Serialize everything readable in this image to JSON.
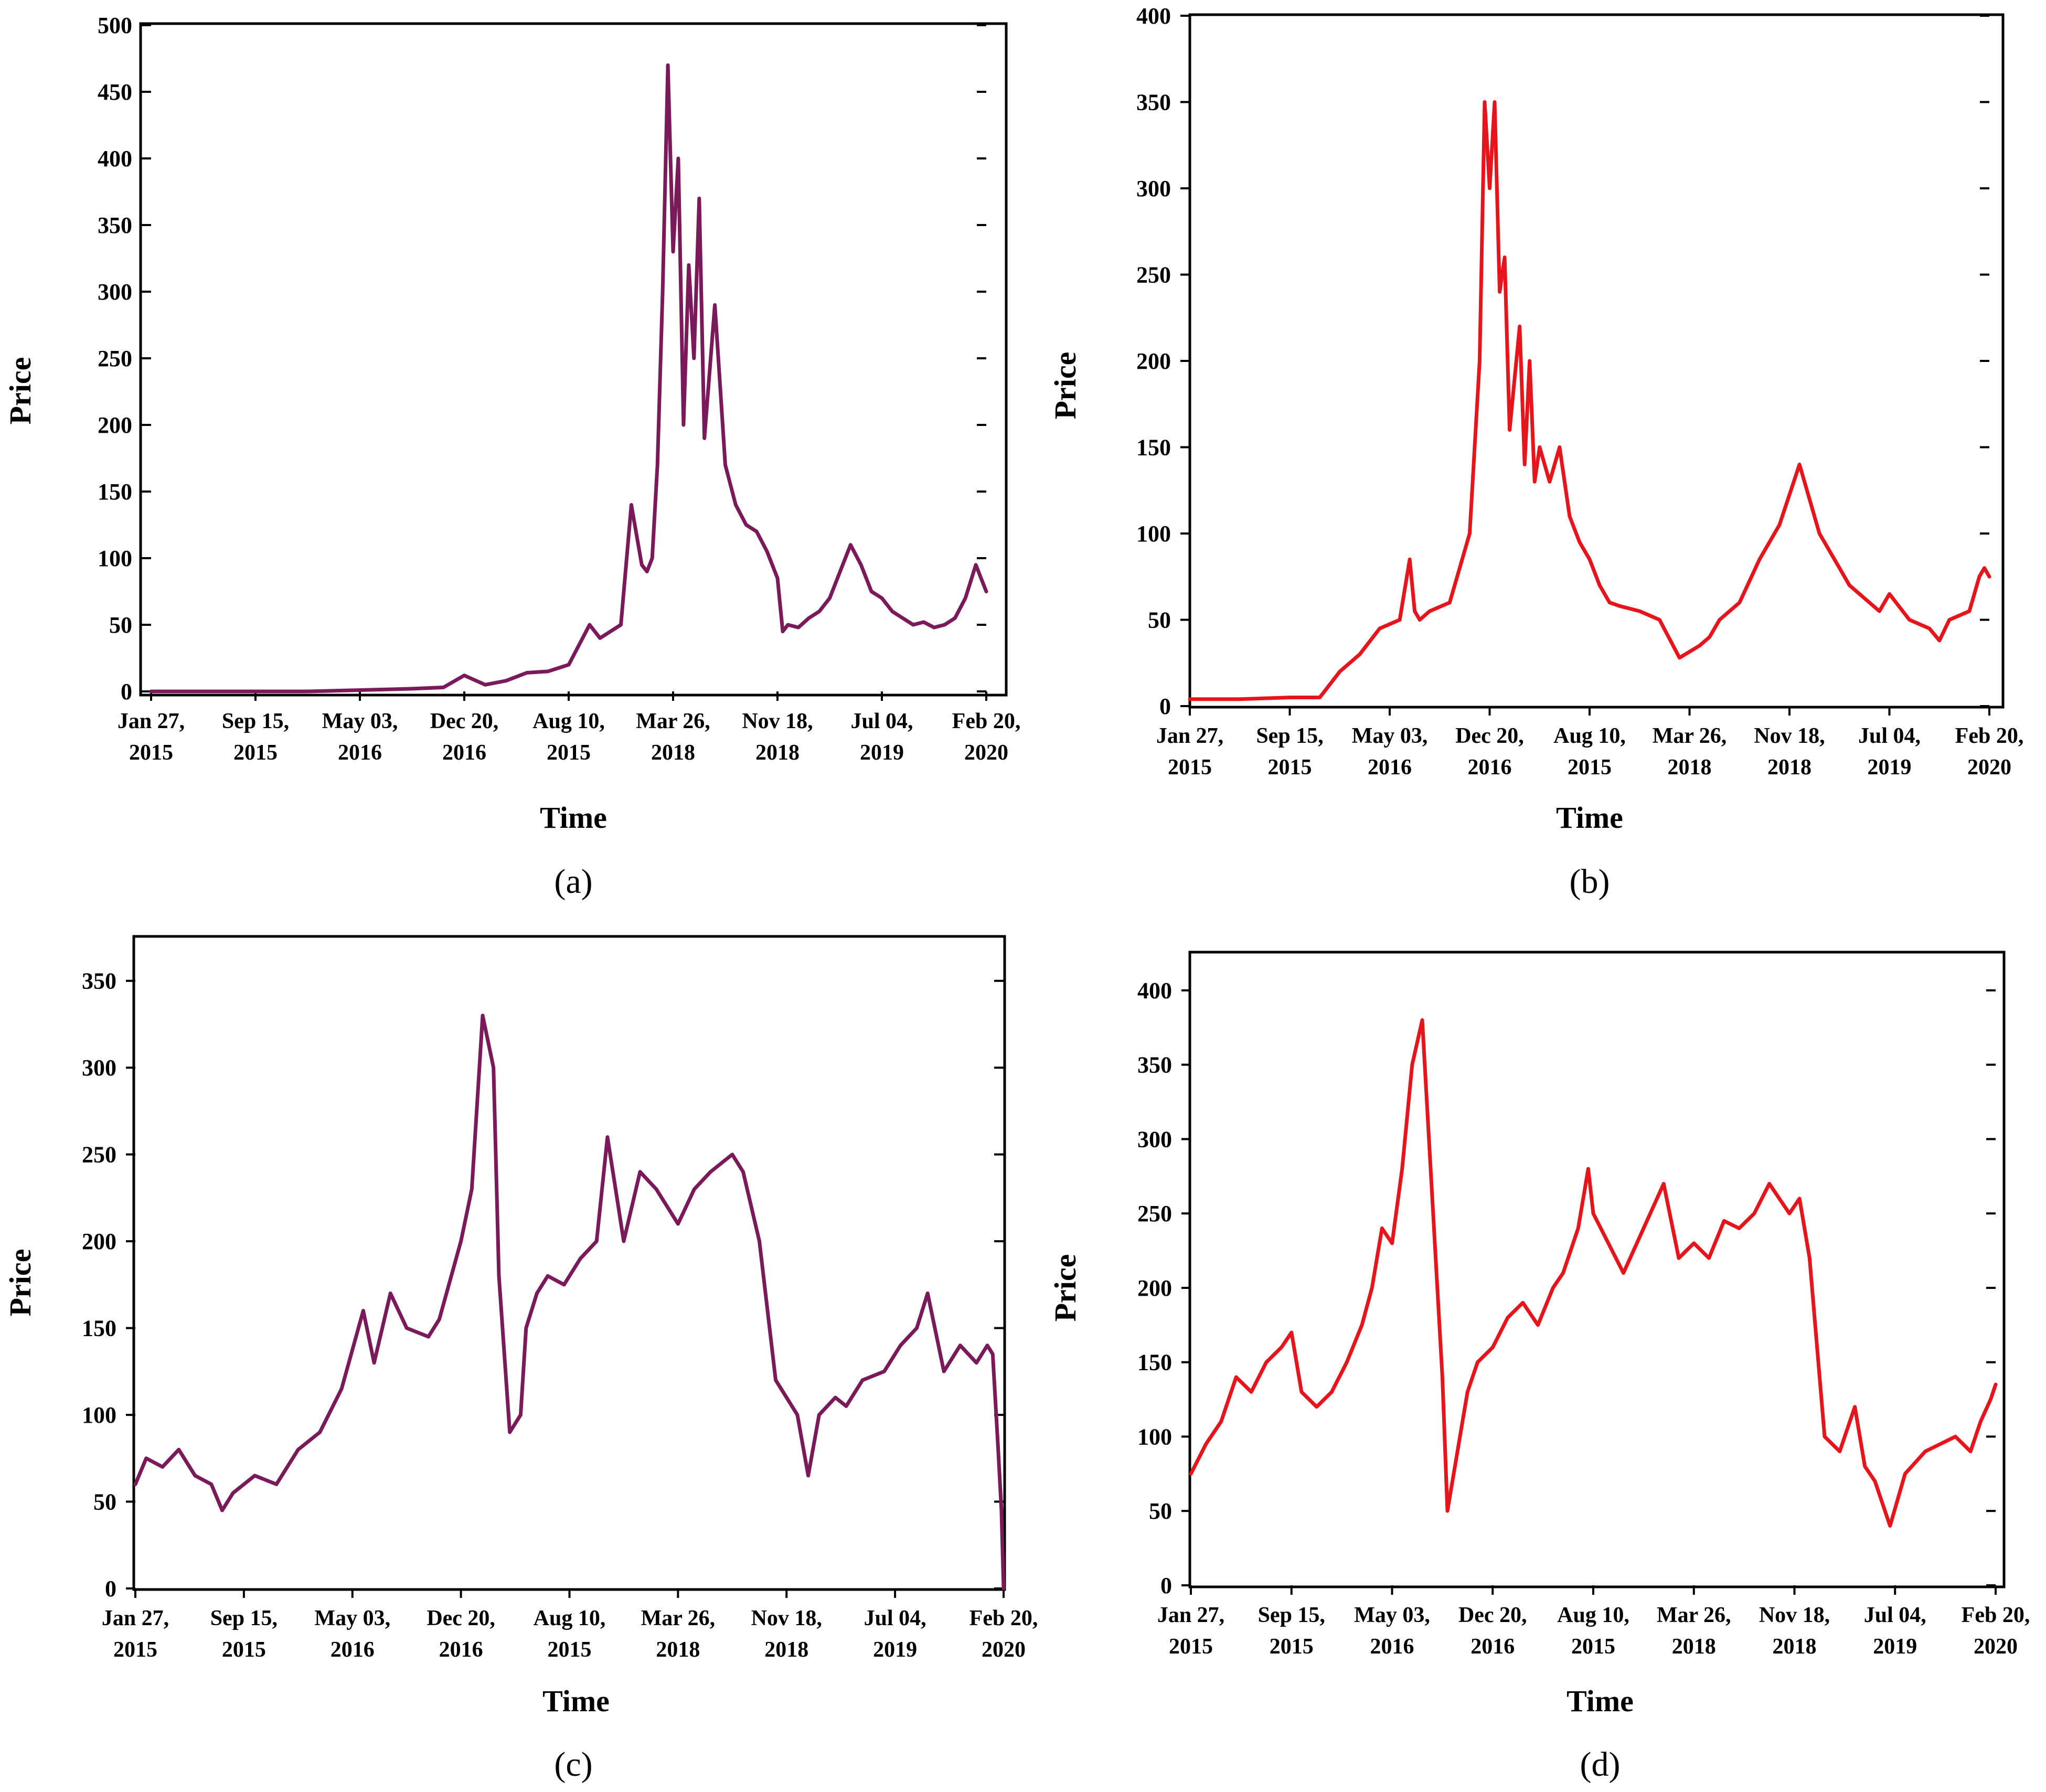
{
  "chart_data": [
    {
      "panel": "(a)",
      "type": "line",
      "color": "#7b1a5a",
      "xlabel": "Time",
      "ylabel": "Price",
      "ylim": [
        0,
        500
      ],
      "yticks": [
        0,
        50,
        100,
        150,
        200,
        250,
        300,
        350,
        400,
        450,
        500
      ],
      "xticks": [
        [
          "Jan 27,",
          "2015"
        ],
        [
          "Sep 15,",
          "2015"
        ],
        [
          "May 03,",
          "2016"
        ],
        [
          "Dec 20,",
          "2016"
        ],
        [
          "Aug 10,",
          "2015"
        ],
        [
          "Mar 26,",
          "2018"
        ],
        [
          "Nov 18,",
          "2018"
        ],
        [
          "Jul 04,",
          "2019"
        ],
        [
          "Feb 20,",
          "2020"
        ]
      ],
      "x": [
        0,
        0.5,
        1,
        1.5,
        2,
        2.5,
        2.8,
        3,
        3.2,
        3.4,
        3.6,
        3.8,
        4.0,
        4.02,
        4.1,
        4.2,
        4.3,
        4.4,
        4.5,
        4.6,
        4.7,
        4.75,
        4.8,
        4.85,
        4.9,
        4.95,
        5.0,
        5.05,
        5.1,
        5.15,
        5.2,
        5.25,
        5.3,
        5.4,
        5.5,
        5.6,
        5.7,
        5.8,
        5.9,
        6.0,
        6.05,
        6.1,
        6.2,
        6.3,
        6.4,
        6.5,
        6.6,
        6.7,
        6.8,
        6.9,
        7.0,
        7.1,
        7.2,
        7.3,
        7.4,
        7.5,
        7.6,
        7.7,
        7.8,
        7.9,
        7.95,
        8.0
      ],
      "y": [
        0,
        0,
        0,
        0,
        1,
        2,
        3,
        12,
        5,
        8,
        14,
        15,
        20,
        23,
        35,
        50,
        40,
        45,
        50,
        140,
        95,
        90,
        100,
        170,
        300,
        470,
        330,
        400,
        200,
        320,
        250,
        370,
        190,
        290,
        170,
        140,
        125,
        120,
        105,
        85,
        45,
        50,
        48,
        55,
        60,
        70,
        90,
        110,
        95,
        75,
        70,
        60,
        55,
        50,
        52,
        48,
        50,
        55,
        70,
        95,
        85,
        75
      ]
    },
    {
      "panel": "(b)",
      "type": "line",
      "color": "#e8141c",
      "xlabel": "Time",
      "ylabel": "Price",
      "ylim": [
        0,
        400
      ],
      "yticks": [
        0,
        50,
        100,
        150,
        200,
        250,
        300,
        350,
        400
      ],
      "xticks": [
        [
          "Jan 27,",
          "2015"
        ],
        [
          "Sep 15,",
          "2015"
        ],
        [
          "May 03,",
          "2016"
        ],
        [
          "Dec 20,",
          "2016"
        ],
        [
          "Aug 10,",
          "2015"
        ],
        [
          "Mar 26,",
          "2018"
        ],
        [
          "Nov 18,",
          "2018"
        ],
        [
          "Jul 04,",
          "2019"
        ],
        [
          "Feb 20,",
          "2020"
        ]
      ],
      "x": [
        0,
        0.5,
        1,
        1.3,
        1.5,
        1.7,
        1.9,
        2.1,
        2.2,
        2.25,
        2.3,
        2.4,
        2.6,
        2.8,
        2.9,
        2.95,
        3.0,
        3.05,
        3.1,
        3.15,
        3.2,
        3.3,
        3.35,
        3.4,
        3.45,
        3.5,
        3.6,
        3.7,
        3.8,
        3.9,
        4.0,
        4.1,
        4.2,
        4.3,
        4.5,
        4.7,
        4.9,
        5.1,
        5.2,
        5.3,
        5.5,
        5.7,
        5.9,
        6.1,
        6.3,
        6.5,
        6.6,
        6.7,
        6.8,
        6.9,
        7.0,
        7.2,
        7.4,
        7.5,
        7.6,
        7.8,
        7.9,
        7.95,
        8.0
      ],
      "y": [
        4,
        4,
        5,
        5,
        20,
        30,
        45,
        50,
        85,
        55,
        50,
        55,
        60,
        100,
        200,
        350,
        300,
        350,
        240,
        260,
        160,
        220,
        140,
        200,
        130,
        150,
        130,
        150,
        110,
        95,
        85,
        70,
        60,
        58,
        55,
        50,
        28,
        35,
        40,
        50,
        60,
        85,
        105,
        140,
        100,
        80,
        70,
        65,
        60,
        55,
        65,
        50,
        45,
        38,
        50,
        55,
        75,
        80,
        75
      ]
    },
    {
      "panel": "(c)",
      "type": "line",
      "color": "#7b1a5a",
      "xlabel": "Time",
      "ylabel": "Price",
      "ylim": [
        0,
        375
      ],
      "yticks": [
        0,
        50,
        100,
        150,
        200,
        250,
        300,
        350
      ],
      "xticks": [
        [
          "Jan 27,",
          "2015"
        ],
        [
          "Sep 15,",
          "2015"
        ],
        [
          "May 03,",
          "2016"
        ],
        [
          "Dec 20,",
          "2016"
        ],
        [
          "Aug 10,",
          "2015"
        ],
        [
          "Mar 26,",
          "2018"
        ],
        [
          "Nov 18,",
          "2018"
        ],
        [
          "Jul 04,",
          "2019"
        ],
        [
          "Feb 20,",
          "2020"
        ]
      ],
      "x": [
        0,
        0.1,
        0.25,
        0.4,
        0.55,
        0.7,
        0.8,
        0.9,
        1.1,
        1.3,
        1.5,
        1.7,
        1.9,
        2.1,
        2.2,
        2.35,
        2.5,
        2.7,
        2.8,
        3.0,
        3.1,
        3.2,
        3.3,
        3.35,
        3.45,
        3.55,
        3.6,
        3.7,
        3.8,
        3.95,
        4.1,
        4.25,
        4.35,
        4.45,
        4.5,
        4.65,
        4.8,
        5.0,
        5.15,
        5.3,
        5.5,
        5.6,
        5.75,
        5.9,
        6.0,
        6.1,
        6.2,
        6.3,
        6.45,
        6.55,
        6.7,
        6.9,
        7.05,
        7.2,
        7.3,
        7.45,
        7.6,
        7.75,
        7.85,
        7.9,
        7.95,
        7.98,
        8.0
      ],
      "y": [
        60,
        75,
        70,
        80,
        65,
        60,
        45,
        55,
        65,
        60,
        80,
        90,
        115,
        160,
        130,
        170,
        150,
        145,
        155,
        200,
        230,
        330,
        300,
        180,
        90,
        100,
        150,
        170,
        180,
        175,
        190,
        200,
        260,
        220,
        200,
        240,
        230,
        210,
        230,
        240,
        250,
        240,
        200,
        120,
        110,
        100,
        65,
        100,
        110,
        105,
        120,
        125,
        140,
        150,
        170,
        125,
        140,
        130,
        140,
        135,
        80,
        45,
        0
      ]
    },
    {
      "panel": "(d)",
      "type": "line",
      "color": "#e8141c",
      "xlabel": "Time",
      "ylabel": "Price",
      "ylim": [
        0,
        425
      ],
      "yticks": [
        0,
        50,
        100,
        150,
        200,
        250,
        300,
        350,
        400
      ],
      "xticks": [
        [
          "Jan 27,",
          "2015"
        ],
        [
          "Sep 15,",
          "2015"
        ],
        [
          "May 03,",
          "2016"
        ],
        [
          "Dec 20,",
          "2016"
        ],
        [
          "Aug 10,",
          "2015"
        ],
        [
          "Mar 26,",
          "2018"
        ],
        [
          "Nov 18,",
          "2018"
        ],
        [
          "Jul 04,",
          "2019"
        ],
        [
          "Feb 20,",
          "2020"
        ]
      ],
      "x": [
        0,
        0.15,
        0.3,
        0.45,
        0.6,
        0.75,
        0.9,
        1.0,
        1.1,
        1.25,
        1.4,
        1.55,
        1.7,
        1.8,
        1.9,
        2.0,
        2.1,
        2.2,
        2.3,
        2.4,
        2.5,
        2.55,
        2.6,
        2.7,
        2.75,
        2.85,
        3.0,
        3.15,
        3.3,
        3.45,
        3.6,
        3.7,
        3.85,
        3.95,
        4.0,
        4.15,
        4.3,
        4.5,
        4.7,
        4.85,
        5.0,
        5.15,
        5.3,
        5.45,
        5.6,
        5.75,
        5.85,
        5.95,
        6.05,
        6.15,
        6.3,
        6.45,
        6.6,
        6.7,
        6.8,
        6.95,
        7.1,
        7.3,
        7.45,
        7.6,
        7.75,
        7.85,
        7.95,
        8.0
      ],
      "y": [
        75,
        95,
        110,
        140,
        130,
        150,
        160,
        170,
        130,
        120,
        130,
        150,
        175,
        200,
        240,
        230,
        280,
        350,
        380,
        260,
        140,
        50,
        70,
        110,
        130,
        150,
        160,
        180,
        190,
        175,
        200,
        210,
        240,
        280,
        250,
        230,
        210,
        240,
        270,
        220,
        230,
        220,
        245,
        240,
        250,
        270,
        260,
        250,
        260,
        220,
        100,
        90,
        120,
        80,
        70,
        40,
        75,
        90,
        95,
        100,
        90,
        110,
        125,
        135
      ]
    }
  ]
}
